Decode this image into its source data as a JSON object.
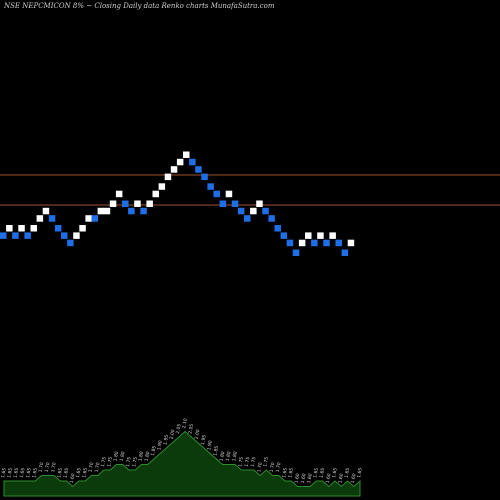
{
  "header": {
    "title": "NSE NEPCMICON  8% ~  Closing Daily data  Renko  charts MunafaSutra.com"
  },
  "chart_data": {
    "type": "renko",
    "title": "NSE NEPCMICON  8% ~  Closing Daily data  Renko  charts MunafaSutra.com",
    "xlabel": "",
    "ylabel": "",
    "grid": false,
    "colors": {
      "background": "#000000",
      "up_brick": "#ffffff",
      "down_brick": "#1e6fe6",
      "reference_line": "#a0522d",
      "volume_area": "#0b3a0b",
      "volume_line": "#2e8b2e"
    },
    "reference_levels": [
      1.9,
      1.7
    ],
    "bricks": [
      {
        "dir": "down",
        "level": 1.67
      },
      {
        "dir": "up",
        "level": 1.7
      },
      {
        "dir": "down",
        "level": 1.67
      },
      {
        "dir": "up",
        "level": 1.7
      },
      {
        "dir": "down",
        "level": 1.67
      },
      {
        "dir": "up",
        "level": 1.7
      },
      {
        "dir": "up",
        "level": 1.74
      },
      {
        "dir": "up",
        "level": 1.77
      },
      {
        "dir": "down",
        "level": 1.74
      },
      {
        "dir": "down",
        "level": 1.7
      },
      {
        "dir": "down",
        "level": 1.67
      },
      {
        "dir": "down",
        "level": 1.64
      },
      {
        "dir": "up",
        "level": 1.67
      },
      {
        "dir": "up",
        "level": 1.7
      },
      {
        "dir": "up",
        "level": 1.74
      },
      {
        "dir": "down",
        "level": 1.74
      },
      {
        "dir": "up",
        "level": 1.77
      },
      {
        "dir": "up",
        "level": 1.77
      },
      {
        "dir": "up",
        "level": 1.8
      },
      {
        "dir": "up",
        "level": 1.84
      },
      {
        "dir": "down",
        "level": 1.8
      },
      {
        "dir": "down",
        "level": 1.77
      },
      {
        "dir": "up",
        "level": 1.8
      },
      {
        "dir": "down",
        "level": 1.77
      },
      {
        "dir": "up",
        "level": 1.8
      },
      {
        "dir": "up",
        "level": 1.84
      },
      {
        "dir": "up",
        "level": 1.87
      },
      {
        "dir": "up",
        "level": 1.91
      },
      {
        "dir": "up",
        "level": 1.94
      },
      {
        "dir": "up",
        "level": 1.97
      },
      {
        "dir": "up",
        "level": 2.0
      },
      {
        "dir": "down",
        "level": 1.97
      },
      {
        "dir": "down",
        "level": 1.94
      },
      {
        "dir": "down",
        "level": 1.91
      },
      {
        "dir": "down",
        "level": 1.87
      },
      {
        "dir": "down",
        "level": 1.84
      },
      {
        "dir": "down",
        "level": 1.8
      },
      {
        "dir": "up",
        "level": 1.84
      },
      {
        "dir": "down",
        "level": 1.8
      },
      {
        "dir": "down",
        "level": 1.77
      },
      {
        "dir": "down",
        "level": 1.74
      },
      {
        "dir": "up",
        "level": 1.77
      },
      {
        "dir": "up",
        "level": 1.8
      },
      {
        "dir": "down",
        "level": 1.77
      },
      {
        "dir": "down",
        "level": 1.74
      },
      {
        "dir": "down",
        "level": 1.7
      },
      {
        "dir": "down",
        "level": 1.67
      },
      {
        "dir": "down",
        "level": 1.64
      },
      {
        "dir": "down",
        "level": 1.6
      },
      {
        "dir": "up",
        "level": 1.64
      },
      {
        "dir": "up",
        "level": 1.67
      },
      {
        "dir": "down",
        "level": 1.64
      },
      {
        "dir": "up",
        "level": 1.67
      },
      {
        "dir": "down",
        "level": 1.64
      },
      {
        "dir": "up",
        "level": 1.67
      },
      {
        "dir": "down",
        "level": 1.64
      },
      {
        "dir": "down",
        "level": 1.6
      },
      {
        "dir": "up",
        "level": 1.64
      }
    ],
    "volume_labels": [
      "1.65",
      "1.65",
      "1.65",
      "1.65",
      "1.65",
      "1.65",
      "1.70",
      "1.70",
      "1.70",
      "1.65",
      "1.65",
      "1.60",
      "1.65",
      "1.65",
      "1.70",
      "1.70",
      "1.75",
      "1.75",
      "1.80",
      "1.80",
      "1.75",
      "1.75",
      "1.80",
      "1.80",
      "1.85",
      "1.90",
      "1.95",
      "2.00",
      "2.05",
      "2.10",
      "2.05",
      "2.00",
      "1.95",
      "1.90",
      "1.85",
      "1.80",
      "1.80",
      "1.80",
      "1.75",
      "1.75",
      "1.75",
      "1.70",
      "1.75",
      "1.70",
      "1.70",
      "1.65",
      "1.65",
      "1.60",
      "1.60",
      "1.60",
      "1.65",
      "1.65",
      "1.60",
      "1.65",
      "1.60",
      "1.65",
      "1.60",
      "1.65"
    ]
  }
}
